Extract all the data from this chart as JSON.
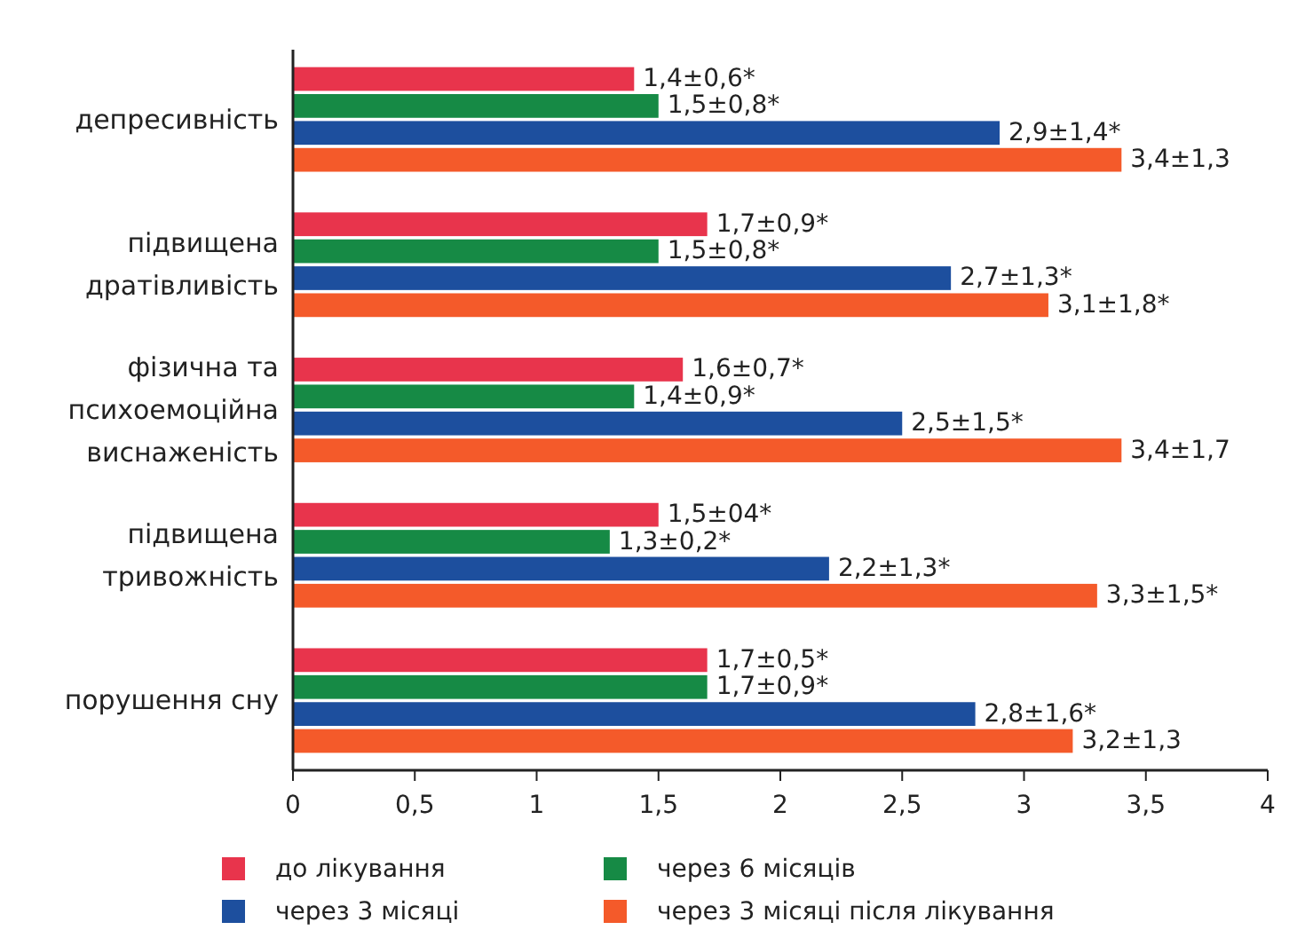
{
  "chart_data": {
    "type": "bar",
    "orientation": "horizontal",
    "categories": [
      "депресивність",
      "підвищена дратівливість",
      "фізична та психоемоційна виснаженість",
      "підвищена тривожність",
      "порушення сну"
    ],
    "series": [
      {
        "name": "до лікування",
        "color": "#e8344c",
        "values": [
          1.4,
          1.7,
          1.6,
          1.5,
          1.7
        ],
        "value_labels": [
          "1,4±0,6*",
          "1,7±0,9*",
          "1,6±0,7*",
          "1,5±04*",
          "1,7±0,5*"
        ]
      },
      {
        "name": "через 6 місяців",
        "color": "#168a45",
        "values": [
          1.5,
          1.5,
          1.4,
          1.3,
          1.7
        ],
        "value_labels": [
          "1,5±0,8*",
          "1,5±0,8*",
          "1,4±0,9*",
          "1,3±0,2*",
          "1,7±0,9*"
        ]
      },
      {
        "name": "через 3 місяці",
        "color": "#1d4f9e",
        "values": [
          2.9,
          2.7,
          2.5,
          2.2,
          2.8
        ],
        "value_labels": [
          "2,9±1,4*",
          "2,7±1,3*",
          "2,5±1,5*",
          "2,2±1,3*",
          "2,8±1,6*"
        ]
      },
      {
        "name": "через 3 місяці після лікування",
        "color": "#f45a2a",
        "values": [
          3.4,
          3.1,
          3.4,
          3.3,
          3.2
        ],
        "value_labels": [
          "3,4±1,3",
          "3,1±1,8*",
          "3,4±1,7",
          "3,3±1,5*",
          "3,2±1,3"
        ]
      }
    ],
    "xlim": [
      0,
      4
    ],
    "xticks": [
      0,
      {
        "value": 0.5,
        "label": "0,5"
      },
      1,
      {
        "value": 1.5,
        "label": "1,5"
      },
      2,
      {
        "value": 2.5,
        "label": "2,5"
      },
      3,
      {
        "value": 3.5,
        "label": "3,5"
      },
      4
    ],
    "legend": "bottom",
    "grid": false
  }
}
